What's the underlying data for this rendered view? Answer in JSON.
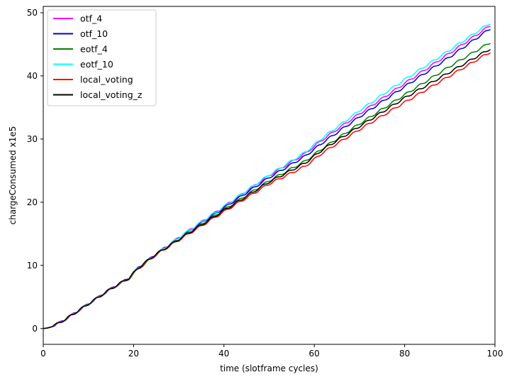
{
  "chart_data": {
    "type": "line",
    "title": "",
    "xlabel": "time (slotframe cycles)",
    "ylabel": "chargeConsumed x1e5",
    "xlim": [
      0,
      100
    ],
    "ylim": [
      -2.5,
      51
    ],
    "xticks": [
      0,
      20,
      40,
      60,
      80,
      100
    ],
    "yticks": [
      0,
      10,
      20,
      30,
      40,
      50
    ],
    "grid": false,
    "legend_position": "upper-left",
    "x": [
      0,
      1,
      2,
      5,
      10,
      15,
      19,
      21,
      25,
      30,
      40,
      50,
      58,
      62,
      70,
      80,
      90,
      99
    ],
    "series": [
      {
        "name": "otf_4",
        "color": "#ff00ff",
        "values": [
          0,
          0.1,
          0.3,
          1.5,
          3.9,
          6.3,
          8.0,
          9.6,
          11.8,
          14.4,
          19.3,
          24.2,
          27.7,
          30.0,
          34.0,
          38.8,
          43.6,
          48.0
        ]
      },
      {
        "name": "otf_10",
        "color": "#0000cc",
        "values": [
          0,
          0.1,
          0.3,
          1.5,
          3.9,
          6.3,
          8.0,
          9.6,
          11.8,
          14.3,
          19.1,
          23.9,
          27.3,
          29.5,
          33.5,
          38.3,
          43.0,
          47.5
        ]
      },
      {
        "name": "eotf_4",
        "color": "#008000",
        "values": [
          0,
          0.1,
          0.3,
          1.5,
          3.9,
          6.3,
          7.9,
          9.4,
          11.7,
          14.1,
          18.8,
          23.4,
          26.5,
          28.6,
          32.4,
          37.0,
          41.5,
          45.3
        ]
      },
      {
        "name": "eotf_10",
        "color": "#00ffff",
        "values": [
          0,
          0.1,
          0.3,
          1.5,
          3.9,
          6.3,
          8.0,
          9.6,
          11.8,
          14.4,
          19.3,
          24.3,
          27.9,
          30.3,
          34.5,
          39.4,
          44.1,
          48.4
        ]
      },
      {
        "name": "local_voting",
        "color": "#ff0000",
        "values": [
          0,
          0.1,
          0.3,
          1.5,
          3.9,
          6.3,
          8.0,
          9.5,
          11.7,
          14.0,
          18.5,
          22.9,
          25.7,
          27.9,
          31.5,
          35.8,
          40.0,
          43.8
        ]
      },
      {
        "name": "local_voting_z",
        "color": "#000000",
        "values": [
          0,
          0.1,
          0.3,
          1.5,
          3.9,
          6.3,
          8.0,
          9.6,
          11.8,
          14.1,
          18.7,
          23.2,
          26.2,
          28.4,
          32.0,
          36.5,
          40.6,
          44.3
        ]
      }
    ]
  }
}
